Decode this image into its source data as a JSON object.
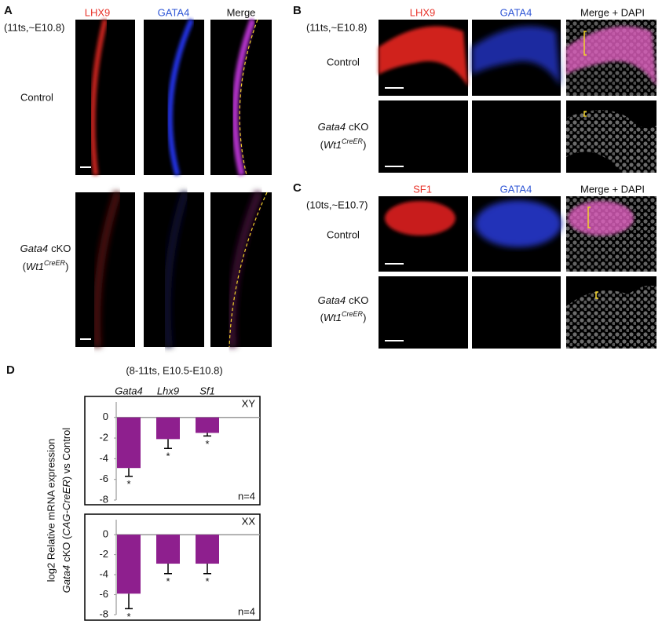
{
  "panel_a": {
    "label": "A",
    "stage": "(11ts,~E10.8)",
    "columns": [
      "LHX9",
      "GATA4",
      "Merge"
    ],
    "control": "Control",
    "cko_line1": [
      "Gata4",
      "cKO"
    ],
    "cko_line2": [
      "(",
      "Wt1",
      "CreER",
      ")"
    ]
  },
  "panel_b": {
    "label": "B",
    "stage": "(11ts,~E10.8)",
    "columns": [
      "LHX9",
      "GATA4",
      "Merge + DAPI"
    ],
    "control": "Control",
    "cko_line1": [
      "Gata4",
      "cKO"
    ],
    "cko_line2": [
      "(",
      "Wt1",
      "CreER",
      ")"
    ]
  },
  "panel_c": {
    "label": "C",
    "stage": "(10ts,~E10.7)",
    "columns": [
      "SF1",
      "GATA4",
      "Merge + DAPI"
    ],
    "control": "Control",
    "cko_line1": [
      "Gata4",
      "cKO"
    ],
    "cko_line2": [
      "(",
      "Wt1",
      "CreER",
      ")"
    ]
  },
  "panel_d": {
    "label": "D",
    "title": "(8-11ts, E10.5-E10.8)",
    "y_label_line1": "log2 Relative mRNA expression",
    "y_label_line2": [
      "Gata4",
      "cKO (",
      "CAG-CreER",
      ") vs Control"
    ]
  },
  "chart_data": [
    {
      "type": "bar",
      "categories": [
        "Gata4",
        "Lhx9",
        "Sf1"
      ],
      "label": "XY",
      "note": "n=4",
      "values": [
        -4.9,
        -2.1,
        -1.5
      ],
      "errors": [
        0.8,
        0.9,
        0.3
      ],
      "significance": [
        "*",
        "*",
        "*"
      ],
      "color": "#8e1f8e",
      "ylim": [
        -8,
        1.5
      ],
      "yticks": [
        0,
        -2,
        -4,
        -6,
        -8
      ]
    },
    {
      "type": "bar",
      "label": "XX",
      "note": "n=4",
      "values": [
        -5.9,
        -2.9,
        -2.9
      ],
      "errors": [
        1.5,
        1.0,
        1.0
      ],
      "significance": [
        "*",
        "*",
        "*"
      ],
      "color": "#8e1f8e",
      "ylim": [
        -8,
        1.5
      ],
      "yticks": [
        0,
        -2,
        -4,
        -6,
        -8
      ]
    }
  ]
}
